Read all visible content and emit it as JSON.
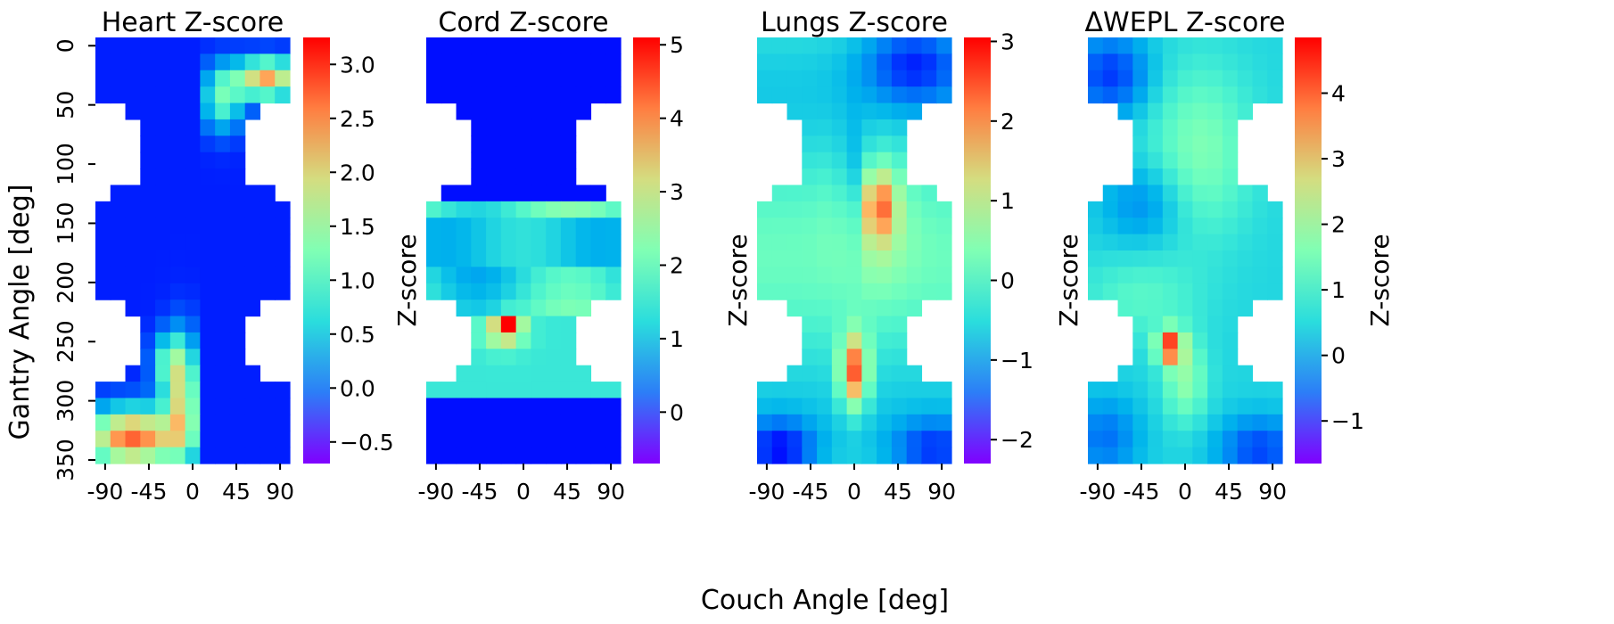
{
  "figure": {
    "xlabel": "Couch Angle [deg]",
    "ylabel": "Gantry Angle [deg]",
    "colorbar_label": "Z-score",
    "colormap": "rainbow",
    "colormap_stops": [
      "#8000ff",
      "#2c7ef7",
      "#2adddd",
      "#80ffb4",
      "#d4dd80",
      "#ff7e41",
      "#ff0000"
    ],
    "x_ticks": [
      "-90",
      "-45",
      "0",
      "45",
      "90"
    ],
    "y_ticks": [
      "0",
      "50",
      "100",
      "150",
      "200",
      "250",
      "300",
      "350"
    ]
  },
  "chart_data": [
    {
      "type": "heatmap",
      "title": "Heart Z-score",
      "x_range": [
        -100,
        100
      ],
      "y_range": [
        0,
        360
      ],
      "cbar_range": [
        -0.7,
        3.25
      ],
      "cbar_ticks": [
        "3.0",
        "2.5",
        "2.0",
        "1.5",
        "1.0",
        "0.5",
        "0.0",
        "−0.5"
      ],
      "cbar_tick_values": [
        3.0,
        2.5,
        2.0,
        1.5,
        1.0,
        0.5,
        0.0,
        -0.5
      ],
      "pattern": "heart",
      "features": [
        "high values at couch +45 to +90, gantry 10-40",
        "high values at couch -90 to -10, gantry 260-355"
      ]
    },
    {
      "type": "heatmap",
      "title": "Cord Z-score",
      "x_range": [
        -100,
        100
      ],
      "y_range": [
        0,
        360
      ],
      "cbar_range": [
        -0.7,
        5.1
      ],
      "cbar_ticks": [
        "5",
        "4",
        "3",
        "2",
        "1",
        "0"
      ],
      "cbar_tick_values": [
        5,
        4,
        3,
        2,
        1,
        0
      ],
      "pattern": "cord",
      "features": [
        "peak near couch -15, gantry 235",
        "moderate band across gantry 140-215"
      ]
    },
    {
      "type": "heatmap",
      "title": "Lungs Z-score",
      "x_range": [
        -100,
        100
      ],
      "y_range": [
        0,
        360
      ],
      "cbar_range": [
        -2.3,
        3.05
      ],
      "cbar_ticks": [
        "3",
        "2",
        "1",
        "0",
        "−1",
        "−2"
      ],
      "cbar_tick_values": [
        3,
        2,
        1,
        0,
        -1,
        -2
      ],
      "pattern": "lungs",
      "features": [
        "peak near couch 0, gantry 255-290",
        "lowest values at couch -90 to -60, gantry 330-355"
      ]
    },
    {
      "type": "heatmap",
      "title": "ΔWEPL Z-score",
      "x_range": [
        -100,
        100
      ],
      "y_range": [
        0,
        360
      ],
      "cbar_range": [
        -1.65,
        4.85
      ],
      "cbar_ticks": [
        "4",
        "3",
        "2",
        "1",
        "0",
        "−1"
      ],
      "cbar_tick_values": [
        4,
        3,
        2,
        1,
        0,
        -1
      ],
      "pattern": "wepl",
      "features": [
        "peak near couch -15, gantry 250-265",
        "low values at corners"
      ]
    }
  ]
}
